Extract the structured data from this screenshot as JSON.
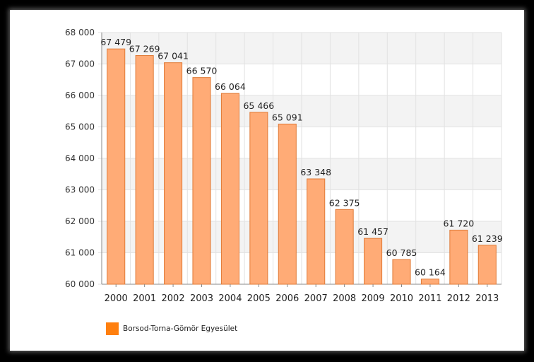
{
  "chart_data": {
    "type": "bar",
    "categories": [
      "2000",
      "2001",
      "2002",
      "2003",
      "2004",
      "2005",
      "2006",
      "2007",
      "2008",
      "2009",
      "2010",
      "2011",
      "2012",
      "2013"
    ],
    "series": [
      {
        "name": "Borsod-Torna-Gömör Egyesület",
        "values": [
          67479,
          67269,
          67041,
          66570,
          66064,
          65466,
          65091,
          63348,
          62375,
          61457,
          60785,
          60164,
          61720,
          61239
        ],
        "value_labels": [
          "67 479",
          "67 269",
          "67 041",
          "66 570",
          "66 064",
          "65 466",
          "65 091",
          "63 348",
          "62 375",
          "61 457",
          "60 785",
          "60 164",
          "61 720",
          "61 239"
        ],
        "color": "#ff7f0e"
      }
    ],
    "ylim": [
      60000,
      68000
    ],
    "yticks": [
      60000,
      61000,
      62000,
      63000,
      64000,
      65000,
      66000,
      67000,
      68000
    ],
    "ytick_labels": [
      "60 000",
      "61 000",
      "62 000",
      "63 000",
      "64 000",
      "65 000",
      "66 000",
      "67 000",
      "68 000"
    ],
    "grid": true,
    "legend_position": "bottom-left",
    "title": "",
    "xlabel": "",
    "ylabel": ""
  },
  "colors": {
    "bar_fill": "#ffab76",
    "bar_stroke": "#e07a36",
    "band": "#f3f3f3",
    "grid": "#e2e2e2",
    "axis": "#888888"
  }
}
